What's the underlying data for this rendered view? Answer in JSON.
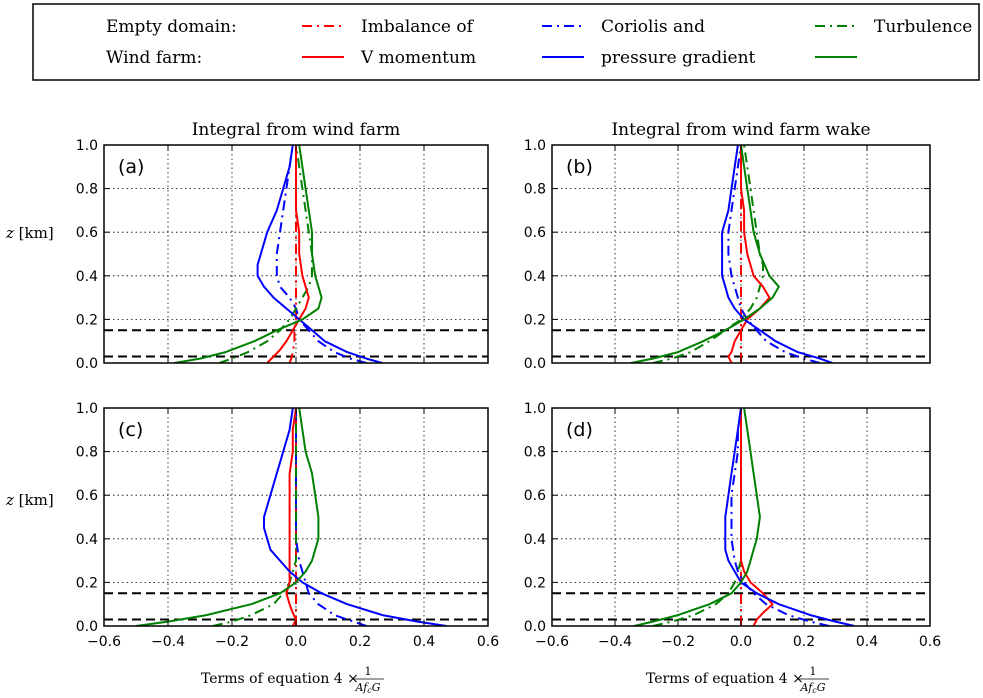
{
  "legend": {
    "row_labels": [
      "Empty domain:",
      "Wind farm:"
    ],
    "entries": [
      {
        "line1": "Imbalance of",
        "line2": "V momentum",
        "color": "#ff0000"
      },
      {
        "line1": "Coriolis and",
        "line2": "pressure gradient",
        "color": "#0000ff"
      },
      {
        "line1": "Turbulence",
        "line2": "",
        "color": "#008000"
      }
    ]
  },
  "colors": {
    "imbalance": "#ff0000",
    "coriolis": "#0000ff",
    "turbulence": "#008000"
  },
  "axes": {
    "ylabel_var": "z",
    "ylabel_unit": " [km]",
    "xlabel_text": "Terms of equation 4",
    "xlabel_factor": "× ",
    "xlabel_num": "1",
    "xlabel_den": "Af",
    "xlabel_den_sub": "c",
    "xlabel_den_end": "G",
    "xlim": [
      -0.6,
      0.6
    ],
    "ylim": [
      0.0,
      1.0
    ],
    "xticks": [
      "−0.6",
      "−0.4",
      "−0.2",
      "0.0",
      "0.2",
      "0.4",
      "0.6"
    ],
    "yticks": [
      "0.0",
      "0.2",
      "0.4",
      "0.6",
      "0.8",
      "1.0"
    ],
    "grid": true
  },
  "chart_data": [
    {
      "type": "line",
      "panel": "(a)",
      "title": "Integral from wind farm",
      "reference_lines_z": [
        0.03,
        0.15
      ],
      "series": [
        {
          "term": "imbalance",
          "style": "dashdot",
          "z": [
            0.0,
            0.02,
            0.05,
            0.1,
            0.15,
            0.2,
            0.25,
            0.3,
            0.4,
            0.5,
            0.6,
            0.7,
            0.8,
            0.9,
            1.0
          ],
          "x": [
            -0.02,
            -0.015,
            -0.01,
            -0.005,
            -0.005,
            0.0,
            0.0,
            0.0,
            0.0,
            0.0,
            0.0,
            0.0,
            0.0,
            0.0,
            0.0
          ]
        },
        {
          "term": "coriolis",
          "style": "dashdot",
          "z": [
            0.0,
            0.02,
            0.05,
            0.1,
            0.15,
            0.2,
            0.25,
            0.3,
            0.35,
            0.4,
            0.5,
            0.6,
            0.7,
            0.8,
            0.9,
            1.0
          ],
          "x": [
            0.22,
            0.17,
            0.12,
            0.07,
            0.04,
            0.01,
            0.0,
            -0.02,
            -0.05,
            -0.06,
            -0.06,
            -0.05,
            -0.04,
            -0.03,
            -0.02,
            -0.01
          ]
        },
        {
          "term": "turbulence",
          "style": "dashdot",
          "z": [
            0.0,
            0.02,
            0.05,
            0.1,
            0.15,
            0.2,
            0.25,
            0.3,
            0.35,
            0.4,
            0.5,
            0.6,
            0.7,
            0.8,
            0.9,
            1.0
          ],
          "x": [
            -0.24,
            -0.2,
            -0.15,
            -0.09,
            -0.05,
            -0.02,
            0.0,
            0.02,
            0.04,
            0.05,
            0.05,
            0.04,
            0.03,
            0.02,
            0.01,
            0.0
          ]
        },
        {
          "term": "imbalance",
          "style": "solid",
          "z": [
            0.0,
            0.03,
            0.06,
            0.1,
            0.15,
            0.2,
            0.25,
            0.3,
            0.35,
            0.4,
            0.5,
            0.6,
            0.7,
            0.8,
            0.9,
            1.0
          ],
          "x": [
            -0.09,
            -0.07,
            -0.05,
            -0.03,
            -0.01,
            0.01,
            0.03,
            0.04,
            0.03,
            0.02,
            0.01,
            0.01,
            0.0,
            0.0,
            0.0,
            0.0
          ]
        },
        {
          "term": "coriolis",
          "style": "solid",
          "z": [
            0.0,
            0.02,
            0.05,
            0.1,
            0.15,
            0.2,
            0.25,
            0.3,
            0.35,
            0.4,
            0.45,
            0.5,
            0.6,
            0.7,
            0.8,
            0.9,
            1.0
          ],
          "x": [
            0.27,
            0.22,
            0.16,
            0.09,
            0.05,
            0.01,
            -0.03,
            -0.07,
            -0.1,
            -0.12,
            -0.12,
            -0.11,
            -0.09,
            -0.06,
            -0.04,
            -0.02,
            -0.01
          ]
        },
        {
          "term": "turbulence",
          "style": "solid",
          "z": [
            0.0,
            0.02,
            0.05,
            0.1,
            0.15,
            0.2,
            0.25,
            0.3,
            0.35,
            0.4,
            0.5,
            0.6,
            0.7,
            0.8,
            0.9,
            1.0
          ],
          "x": [
            -0.38,
            -0.3,
            -0.22,
            -0.13,
            -0.06,
            0.02,
            0.07,
            0.08,
            0.07,
            0.06,
            0.05,
            0.05,
            0.04,
            0.03,
            0.02,
            0.01
          ]
        }
      ]
    },
    {
      "type": "line",
      "panel": "(b)",
      "title": "Integral from wind farm wake",
      "reference_lines_z": [
        0.03,
        0.15
      ],
      "series": [
        {
          "term": "imbalance",
          "style": "dashdot",
          "z": [
            0.0,
            0.05,
            0.1,
            0.2,
            0.3,
            0.4,
            0.5,
            0.6,
            0.7,
            0.8,
            0.9,
            1.0
          ],
          "x": [
            0.0,
            0.0,
            0.0,
            0.0,
            0.0,
            0.0,
            0.0,
            0.0,
            0.0,
            0.0,
            0.0,
            0.0
          ]
        },
        {
          "term": "coriolis",
          "style": "dashdot",
          "z": [
            0.0,
            0.02,
            0.05,
            0.1,
            0.15,
            0.2,
            0.25,
            0.3,
            0.35,
            0.4,
            0.5,
            0.6,
            0.7,
            0.8,
            0.9,
            1.0
          ],
          "x": [
            0.25,
            0.2,
            0.14,
            0.08,
            0.05,
            0.02,
            0.0,
            -0.01,
            -0.02,
            -0.03,
            -0.04,
            -0.04,
            -0.03,
            -0.02,
            -0.01,
            0.0
          ]
        },
        {
          "term": "turbulence",
          "style": "dashdot",
          "z": [
            0.0,
            0.02,
            0.05,
            0.1,
            0.15,
            0.2,
            0.25,
            0.3,
            0.35,
            0.4,
            0.45,
            0.5,
            0.6,
            0.7,
            0.8,
            0.9,
            1.0
          ],
          "x": [
            -0.28,
            -0.22,
            -0.16,
            -0.1,
            -0.05,
            0.0,
            0.03,
            0.05,
            0.06,
            0.07,
            0.07,
            0.06,
            0.05,
            0.04,
            0.03,
            0.02,
            0.01
          ]
        },
        {
          "term": "imbalance",
          "style": "solid",
          "z": [
            0.0,
            0.03,
            0.05,
            0.1,
            0.15,
            0.2,
            0.25,
            0.3,
            0.35,
            0.4,
            0.5,
            0.6,
            0.7,
            0.8,
            0.9,
            1.0
          ],
          "x": [
            -0.03,
            -0.04,
            -0.03,
            -0.02,
            0.0,
            0.02,
            0.06,
            0.09,
            0.07,
            0.04,
            0.02,
            0.01,
            0.01,
            0.0,
            0.0,
            0.0
          ]
        },
        {
          "term": "coriolis",
          "style": "solid",
          "z": [
            0.0,
            0.02,
            0.05,
            0.1,
            0.15,
            0.2,
            0.25,
            0.3,
            0.35,
            0.4,
            0.5,
            0.6,
            0.7,
            0.8,
            0.9,
            1.0
          ],
          "x": [
            0.29,
            0.25,
            0.18,
            0.11,
            0.06,
            0.01,
            -0.02,
            -0.04,
            -0.05,
            -0.06,
            -0.06,
            -0.06,
            -0.04,
            -0.03,
            -0.02,
            -0.01
          ]
        },
        {
          "term": "turbulence",
          "style": "solid",
          "z": [
            0.0,
            0.02,
            0.05,
            0.1,
            0.15,
            0.2,
            0.25,
            0.3,
            0.35,
            0.4,
            0.5,
            0.6,
            0.7,
            0.8,
            0.9,
            1.0
          ],
          "x": [
            -0.35,
            -0.28,
            -0.2,
            -0.12,
            -0.05,
            0.01,
            0.06,
            0.1,
            0.12,
            0.09,
            0.06,
            0.04,
            0.03,
            0.02,
            0.01,
            0.0
          ]
        }
      ]
    },
    {
      "type": "line",
      "panel": "(c)",
      "title": "",
      "reference_lines_z": [
        0.03,
        0.15
      ],
      "series": [
        {
          "term": "imbalance",
          "style": "dashdot",
          "z": [
            0.0,
            0.05,
            0.1,
            0.2,
            0.3,
            0.4,
            0.5,
            0.6,
            0.7,
            0.8,
            0.9,
            1.0
          ],
          "x": [
            0.0,
            0.0,
            0.0,
            0.0,
            0.0,
            0.0,
            0.0,
            0.0,
            0.0,
            0.0,
            0.0,
            0.0
          ]
        },
        {
          "term": "coriolis",
          "style": "dashdot",
          "z": [
            0.0,
            0.02,
            0.05,
            0.1,
            0.15,
            0.2,
            0.25,
            0.3,
            0.4,
            0.5,
            0.6,
            0.7,
            0.8,
            0.9,
            1.0
          ],
          "x": [
            0.22,
            0.18,
            0.12,
            0.07,
            0.04,
            0.03,
            0.02,
            0.01,
            0.0,
            0.0,
            0.0,
            0.0,
            0.0,
            0.0,
            0.0
          ]
        },
        {
          "term": "turbulence",
          "style": "dashdot",
          "z": [
            0.0,
            0.02,
            0.05,
            0.1,
            0.15,
            0.2,
            0.25,
            0.3,
            0.4,
            0.5,
            0.6,
            0.7,
            0.8,
            0.9,
            1.0
          ],
          "x": [
            -0.26,
            -0.2,
            -0.14,
            -0.07,
            -0.04,
            -0.02,
            -0.01,
            0.0,
            0.0,
            0.0,
            0.0,
            0.0,
            0.0,
            0.0,
            0.0
          ]
        },
        {
          "term": "imbalance",
          "style": "solid",
          "z": [
            0.0,
            0.03,
            0.06,
            0.1,
            0.15,
            0.2,
            0.25,
            0.3,
            0.4,
            0.5,
            0.6,
            0.7,
            0.8,
            0.9,
            1.0
          ],
          "x": [
            -0.01,
            0.0,
            -0.01,
            -0.02,
            -0.03,
            -0.02,
            -0.02,
            -0.02,
            -0.02,
            -0.02,
            -0.02,
            -0.02,
            -0.01,
            -0.01,
            0.0
          ]
        },
        {
          "term": "coriolis",
          "style": "solid",
          "z": [
            0.0,
            0.02,
            0.05,
            0.1,
            0.15,
            0.2,
            0.25,
            0.3,
            0.35,
            0.4,
            0.45,
            0.5,
            0.6,
            0.7,
            0.8,
            0.9,
            1.0
          ],
          "x": [
            0.47,
            0.38,
            0.27,
            0.16,
            0.08,
            0.02,
            -0.02,
            -0.05,
            -0.08,
            -0.09,
            -0.1,
            -0.1,
            -0.08,
            -0.06,
            -0.04,
            -0.02,
            -0.01
          ]
        },
        {
          "term": "turbulence",
          "style": "solid",
          "z": [
            0.0,
            0.02,
            0.05,
            0.1,
            0.15,
            0.2,
            0.25,
            0.3,
            0.35,
            0.4,
            0.5,
            0.6,
            0.7,
            0.8,
            0.9,
            1.0
          ],
          "x": [
            -0.5,
            -0.4,
            -0.28,
            -0.14,
            -0.05,
            0.0,
            0.03,
            0.05,
            0.06,
            0.07,
            0.07,
            0.06,
            0.05,
            0.03,
            0.02,
            0.01
          ]
        }
      ]
    },
    {
      "type": "line",
      "panel": "(d)",
      "title": "",
      "reference_lines_z": [
        0.03,
        0.15
      ],
      "series": [
        {
          "term": "imbalance",
          "style": "dashdot",
          "z": [
            0.0,
            0.05,
            0.1,
            0.2,
            0.3,
            0.4,
            0.5,
            0.6,
            0.7,
            0.8,
            0.9,
            1.0
          ],
          "x": [
            0.0,
            0.0,
            0.0,
            0.0,
            0.0,
            0.0,
            0.0,
            0.0,
            0.0,
            0.0,
            0.0,
            0.0
          ]
        },
        {
          "term": "coriolis",
          "style": "dashdot",
          "z": [
            0.0,
            0.02,
            0.05,
            0.1,
            0.15,
            0.2,
            0.25,
            0.3,
            0.4,
            0.5,
            0.6,
            0.7,
            0.8,
            0.9,
            1.0
          ],
          "x": [
            0.28,
            0.22,
            0.15,
            0.08,
            0.04,
            0.01,
            -0.01,
            -0.02,
            -0.03,
            -0.03,
            -0.03,
            -0.02,
            -0.01,
            -0.01,
            0.0
          ]
        },
        {
          "term": "turbulence",
          "style": "dashdot",
          "z": [
            0.0,
            0.02,
            0.05,
            0.1,
            0.15,
            0.2,
            0.25,
            0.3,
            0.4,
            0.5,
            0.6,
            0.7,
            0.8,
            0.9,
            1.0
          ],
          "x": [
            -0.28,
            -0.22,
            -0.15,
            -0.08,
            -0.04,
            -0.02,
            -0.01,
            0.0,
            0.0,
            0.0,
            0.0,
            0.0,
            0.0,
            0.0,
            0.0
          ]
        },
        {
          "term": "imbalance",
          "style": "solid",
          "z": [
            0.0,
            0.03,
            0.06,
            0.1,
            0.15,
            0.2,
            0.25,
            0.3,
            0.4,
            0.5,
            0.6,
            0.7,
            0.8,
            0.9,
            1.0
          ],
          "x": [
            0.04,
            0.05,
            0.07,
            0.1,
            0.07,
            0.03,
            0.01,
            0.0,
            0.0,
            0.0,
            0.0,
            0.0,
            0.0,
            0.0,
            0.0
          ]
        },
        {
          "term": "coriolis",
          "style": "solid",
          "z": [
            0.0,
            0.02,
            0.05,
            0.1,
            0.15,
            0.2,
            0.25,
            0.3,
            0.35,
            0.4,
            0.5,
            0.6,
            0.7,
            0.8,
            0.9,
            1.0
          ],
          "x": [
            0.36,
            0.3,
            0.22,
            0.12,
            0.05,
            0.0,
            -0.02,
            -0.04,
            -0.05,
            -0.05,
            -0.05,
            -0.04,
            -0.03,
            -0.02,
            -0.01,
            0.0
          ]
        },
        {
          "term": "turbulence",
          "style": "solid",
          "z": [
            0.0,
            0.02,
            0.05,
            0.1,
            0.15,
            0.2,
            0.25,
            0.3,
            0.35,
            0.4,
            0.5,
            0.6,
            0.7,
            0.8,
            0.9,
            1.0
          ],
          "x": [
            -0.34,
            -0.28,
            -0.2,
            -0.1,
            -0.03,
            0.0,
            0.02,
            0.03,
            0.04,
            0.05,
            0.06,
            0.05,
            0.04,
            0.03,
            0.02,
            0.01
          ]
        }
      ]
    }
  ]
}
